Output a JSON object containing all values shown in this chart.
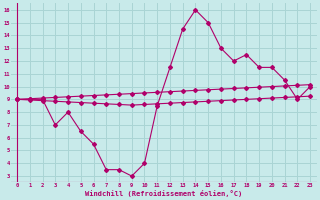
{
  "x": [
    0,
    1,
    2,
    3,
    4,
    5,
    6,
    7,
    8,
    9,
    10,
    11,
    12,
    13,
    14,
    15,
    16,
    17,
    18,
    19,
    20,
    21,
    22,
    23
  ],
  "line_main": [
    9,
    9,
    9,
    7,
    8,
    6.5,
    5.5,
    3.5,
    3.5,
    3,
    4,
    8.5,
    11.5,
    14.5,
    16,
    15,
    13,
    12,
    12.5,
    11.5,
    11.5,
    10.5,
    9,
    10
  ],
  "line_upper": [
    9.0,
    9.05,
    9.1,
    9.15,
    9.2,
    9.25,
    9.3,
    9.35,
    9.4,
    9.45,
    9.5,
    9.55,
    9.6,
    9.65,
    9.7,
    9.75,
    9.8,
    9.85,
    9.9,
    9.95,
    10.0,
    10.05,
    10.1,
    10.15
  ],
  "line_lower": [
    9.0,
    8.95,
    8.9,
    8.85,
    8.8,
    8.75,
    8.7,
    8.65,
    8.6,
    8.55,
    8.6,
    8.65,
    8.7,
    8.75,
    8.8,
    8.85,
    8.9,
    8.95,
    9.0,
    9.05,
    9.1,
    9.15,
    9.2,
    9.25
  ],
  "bg_color": "#c8eaea",
  "grid_color": "#aad4d4",
  "line_color": "#b0006a",
  "xlabel": "Windchill (Refroidissement éolien,°C)",
  "ylim": [
    2.5,
    16.5
  ],
  "xlim": [
    -0.5,
    23.5
  ],
  "yticks": [
    3,
    4,
    5,
    6,
    7,
    8,
    9,
    10,
    11,
    12,
    13,
    14,
    15,
    16
  ],
  "xticks": [
    0,
    1,
    2,
    3,
    4,
    5,
    6,
    7,
    8,
    9,
    10,
    11,
    12,
    13,
    14,
    15,
    16,
    17,
    18,
    19,
    20,
    21,
    22,
    23
  ]
}
